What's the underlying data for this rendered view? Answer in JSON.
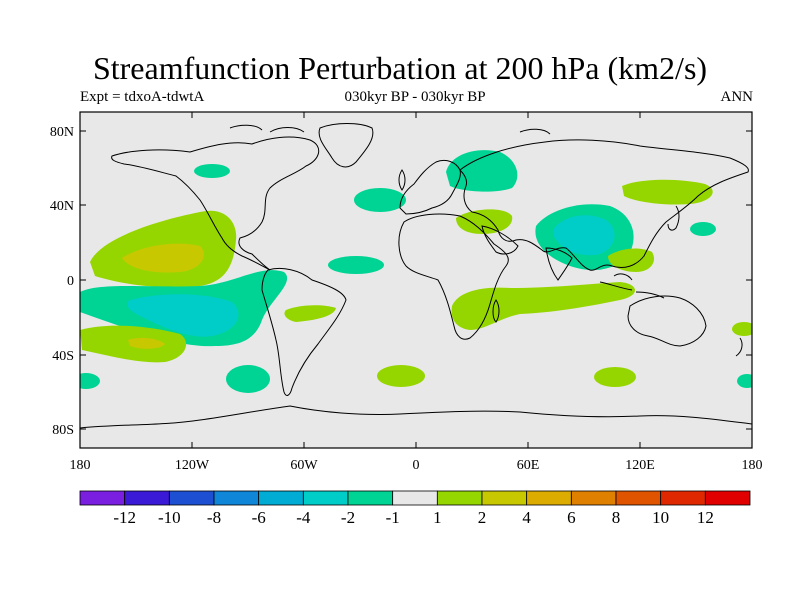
{
  "title": "Streamfunction Perturbation at 200 hPa (km2/s)",
  "subtitle_center": "030kyr BP - 030kyr BP",
  "subtitle_left": "Expt = tdxoA-tdwtA",
  "subtitle_right": "ANN",
  "map": {
    "projection": "cylindrical equidistant",
    "lon_range": [
      -180,
      180
    ],
    "lat_range": [
      -90,
      90
    ],
    "lat_ticks": [
      "80N",
      "40N",
      "0",
      "40S",
      "80S"
    ],
    "lon_ticks": [
      "180",
      "120W",
      "60W",
      "0",
      "60E",
      "120E",
      "180"
    ],
    "background_color": "#e8e8e8"
  },
  "colorbar": {
    "labels": [
      "-12",
      "-10",
      "-8",
      "-6",
      "-4",
      "-2",
      "-1",
      "1",
      "2",
      "4",
      "6",
      "8",
      "10",
      "12"
    ],
    "colors": [
      "#7a1fe0",
      "#3a1ad6",
      "#1d4fd2",
      "#0f86d8",
      "#00acd4",
      "#00ccc8",
      "#00d494",
      "#e8e8e8",
      "#96d600",
      "#c8c800",
      "#dcac00",
      "#e08000",
      "#e05400",
      "#e02800",
      "#e00000"
    ]
  },
  "anomaly_regions": [
    {
      "name": "north-pacific-positive",
      "level": "1 to 4"
    },
    {
      "name": "south-pacific-negative",
      "level": "-4 to -1"
    },
    {
      "name": "south-indian-positive",
      "level": "1 to 2"
    },
    {
      "name": "tibet-negative",
      "level": "-4 to -1"
    },
    {
      "name": "eurasia-arctic-negative",
      "level": "-2 to -1"
    }
  ]
}
